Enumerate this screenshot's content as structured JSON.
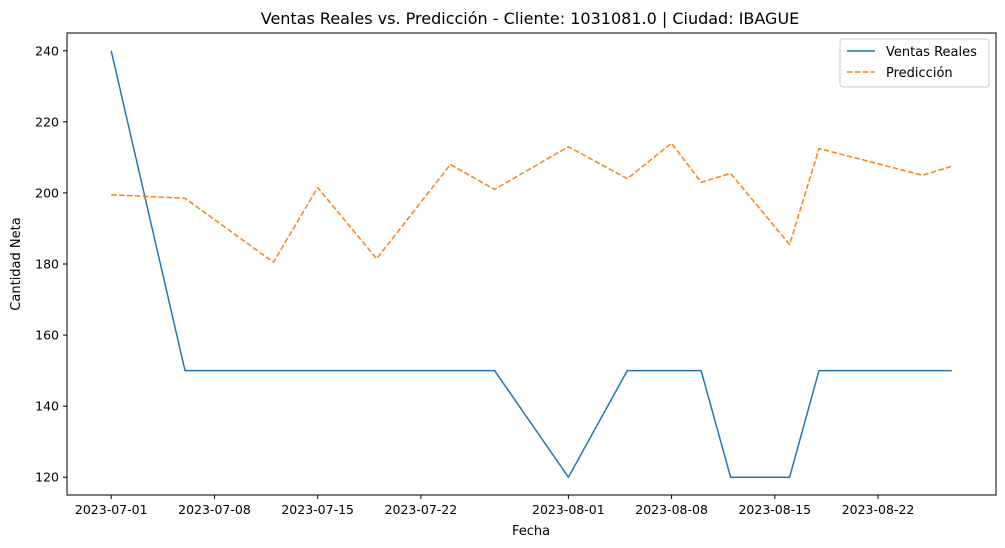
{
  "chart_data": {
    "type": "line",
    "title": "Ventas Reales vs. Predicción - Cliente: 1031081.0 | Ciudad: IBAGUE",
    "xlabel": "Fecha",
    "ylabel": "Cantidad Neta",
    "xlim": [
      "2023-06-28",
      "2023-08-30"
    ],
    "ylim": [
      115,
      245
    ],
    "x_ticks": [
      "2023-07-01",
      "2023-07-08",
      "2023-07-15",
      "2023-07-22",
      "2023-08-01",
      "2023-08-08",
      "2023-08-15",
      "2023-08-22"
    ],
    "y_ticks": [
      120,
      140,
      160,
      180,
      200,
      220,
      240
    ],
    "grid": false,
    "legend_position": "top-right",
    "series": [
      {
        "name": "Ventas Reales",
        "color": "#1f77b4",
        "style": "solid",
        "points": [
          [
            "2023-07-01",
            240
          ],
          [
            "2023-07-06",
            150
          ],
          [
            "2023-07-27",
            150
          ],
          [
            "2023-08-01",
            120
          ],
          [
            "2023-08-05",
            150
          ],
          [
            "2023-08-10",
            150
          ],
          [
            "2023-08-12",
            120
          ],
          [
            "2023-08-16",
            120
          ],
          [
            "2023-08-18",
            150
          ],
          [
            "2023-08-27",
            150
          ]
        ]
      },
      {
        "name": "Predicción",
        "color": "#ff7f0e",
        "style": "dashed",
        "points": [
          [
            "2023-07-01",
            199.5
          ],
          [
            "2023-07-06",
            198.5
          ],
          [
            "2023-07-12",
            180.5
          ],
          [
            "2023-07-15",
            201.5
          ],
          [
            "2023-07-19",
            181.5
          ],
          [
            "2023-07-24",
            208
          ],
          [
            "2023-07-27",
            201
          ],
          [
            "2023-08-01",
            213
          ],
          [
            "2023-08-05",
            204
          ],
          [
            "2023-08-08",
            214
          ],
          [
            "2023-08-10",
            203
          ],
          [
            "2023-08-12",
            205.5
          ],
          [
            "2023-08-16",
            185.5
          ],
          [
            "2023-08-18",
            212.5
          ],
          [
            "2023-08-25",
            205
          ],
          [
            "2023-08-27",
            207.5
          ]
        ]
      }
    ]
  }
}
